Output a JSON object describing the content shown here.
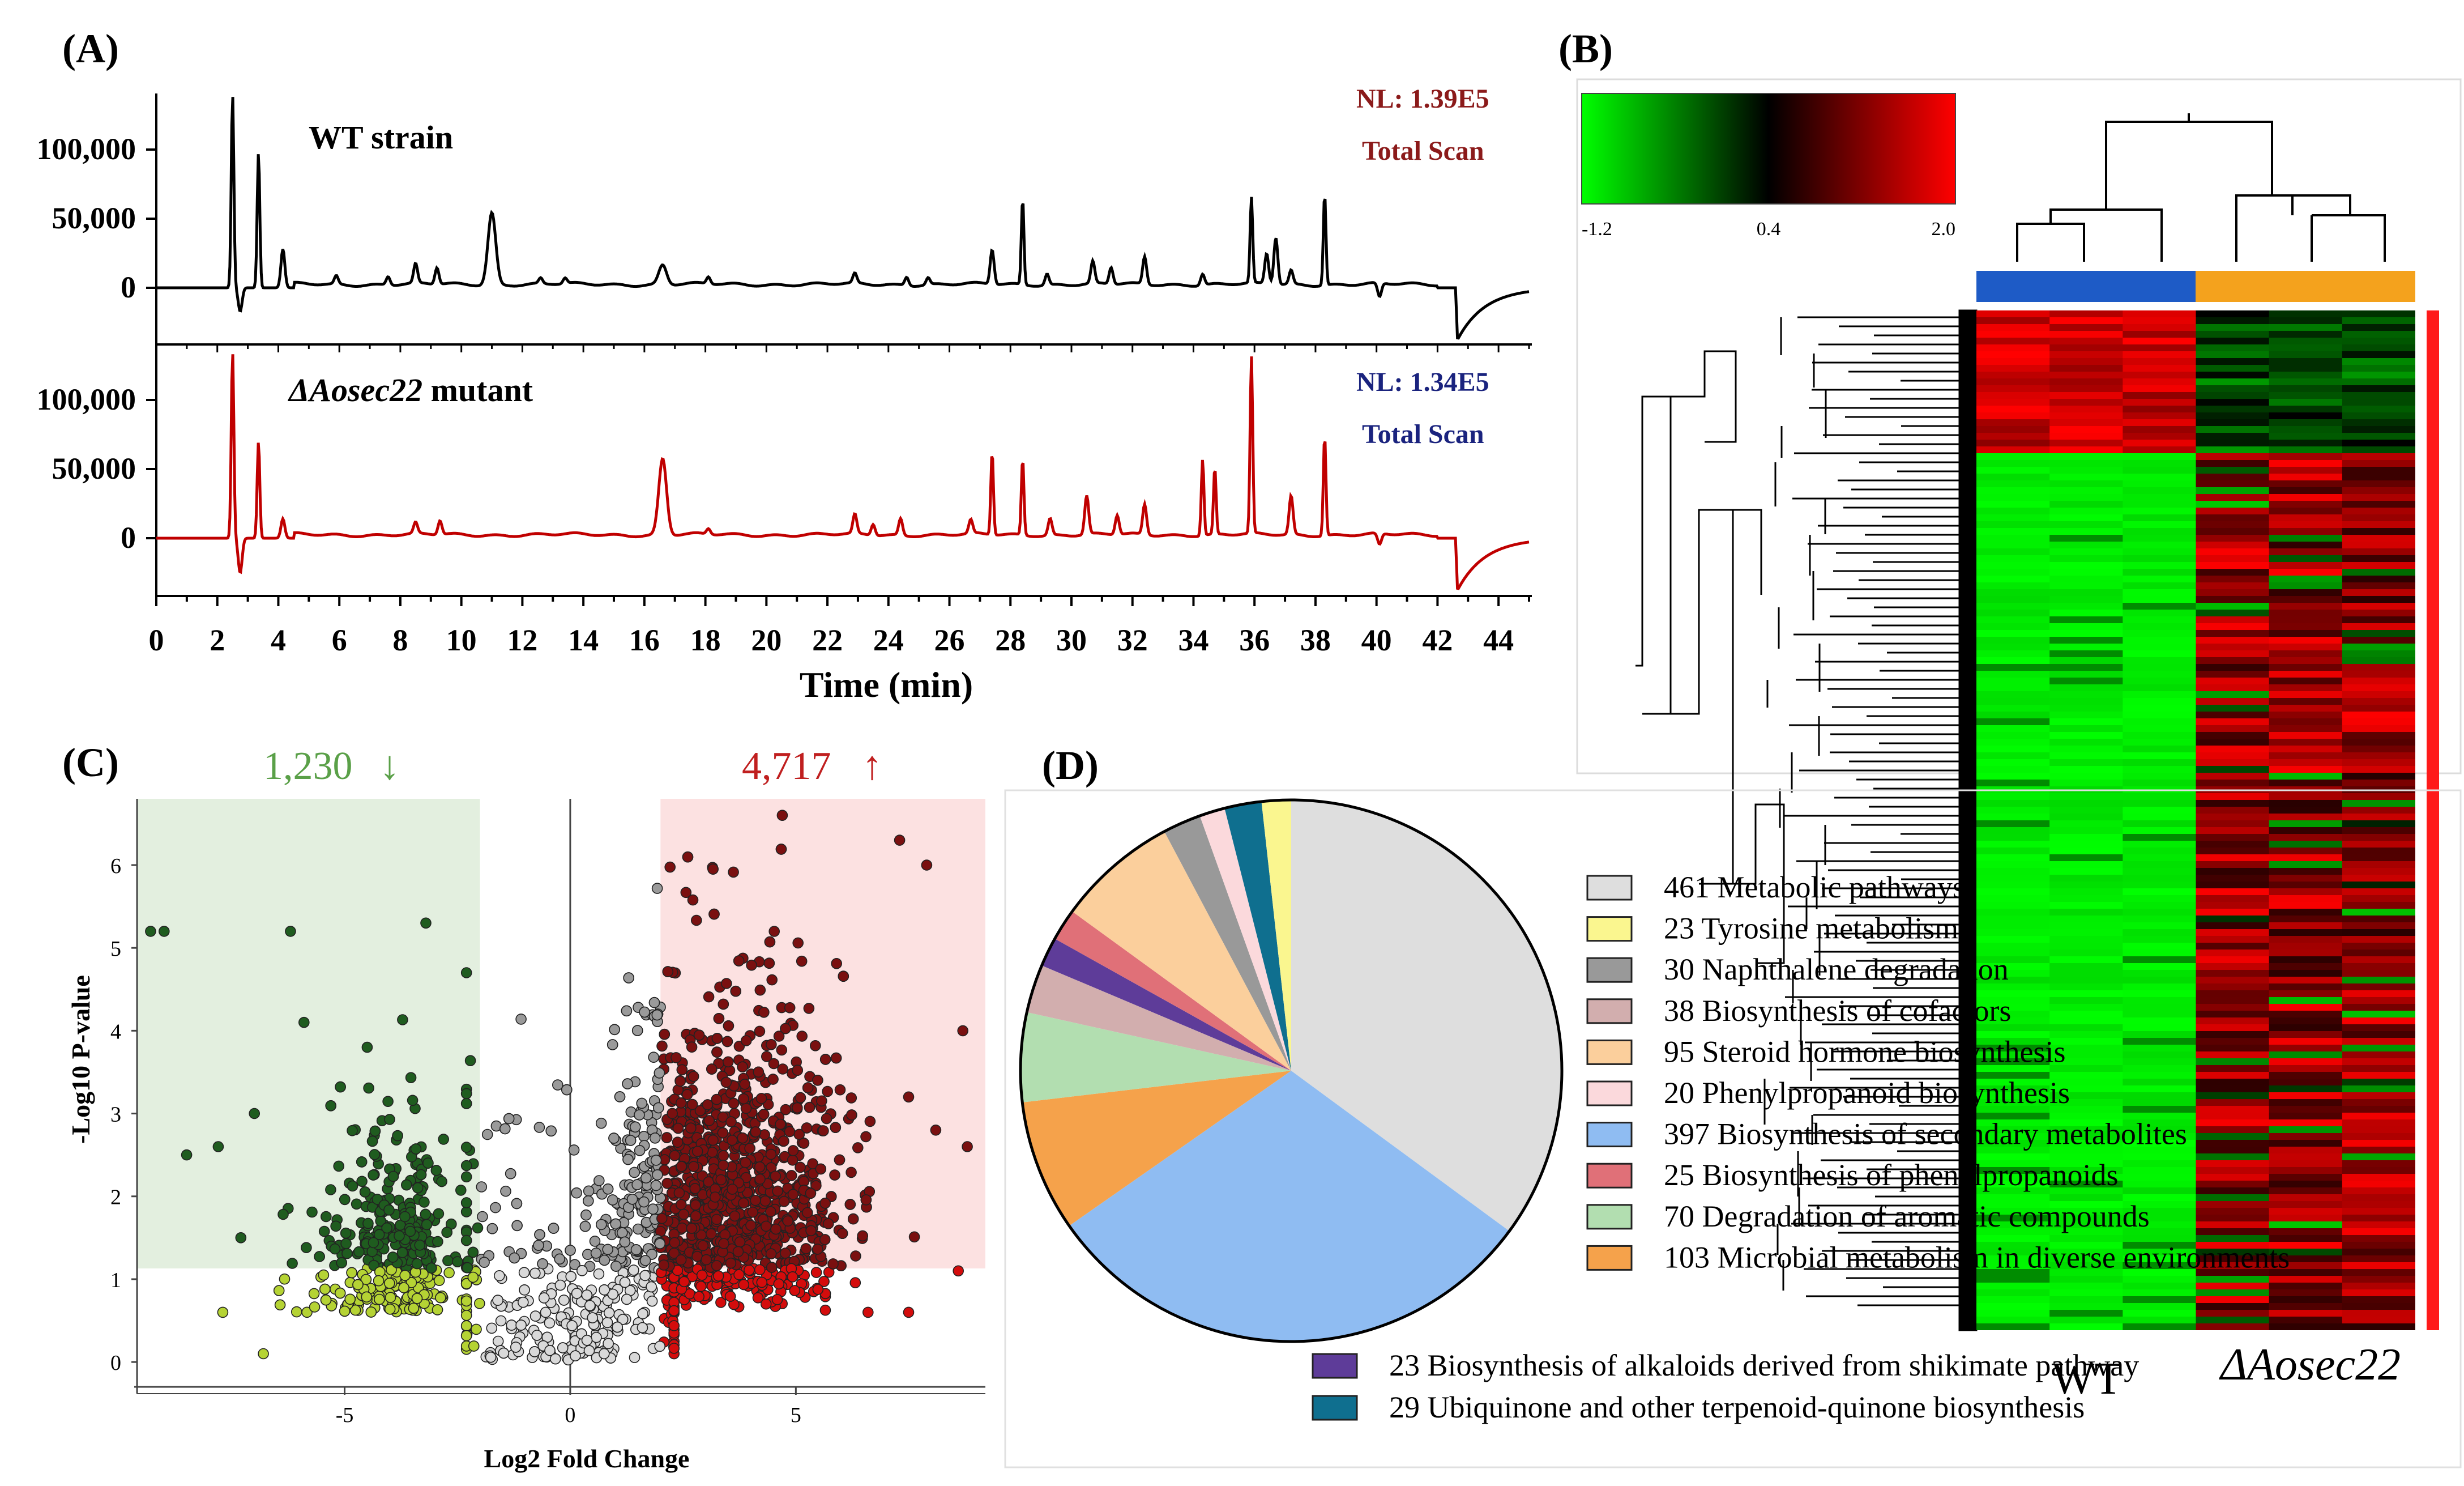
{
  "figure": {
    "panel_labels": [
      "(A)",
      "(B)",
      "(C)",
      "(D)"
    ]
  },
  "chart_data": [
    {
      "id": "A",
      "type": "line",
      "xlabel": "Time (min)",
      "xlim": [
        0,
        45
      ],
      "x_ticks": [
        0,
        2,
        4,
        6,
        8,
        10,
        12,
        14,
        16,
        18,
        20,
        22,
        24,
        26,
        28,
        30,
        32,
        34,
        36,
        38,
        40,
        42,
        44
      ],
      "y_tick_labels": [
        "100,000",
        "50,000",
        "0"
      ],
      "y_ticks": [
        100000,
        50000,
        0
      ],
      "series": [
        {
          "name": "WT strain",
          "nl_label": "NL: 1.39E5",
          "scan_label": "Total Scan",
          "color": "#000000",
          "label_color": "#8b1a1a",
          "peaks": [
            [
              2.5,
              140000
            ],
            [
              2.75,
              -17000
            ],
            [
              3.35,
              98000
            ],
            [
              4.15,
              28000
            ],
            [
              5.9,
              6000
            ],
            [
              7.6,
              6000
            ],
            [
              8.5,
              14000
            ],
            [
              9.2,
              12000
            ],
            [
              11.0,
              52000
            ],
            [
              12.6,
              4000
            ],
            [
              13.4,
              4000
            ],
            [
              16.6,
              14000
            ],
            [
              18.1,
              5000
            ],
            [
              22.9,
              7000
            ],
            [
              24.6,
              6000
            ],
            [
              25.3,
              5000
            ],
            [
              27.4,
              25000
            ],
            [
              28.4,
              62000
            ],
            [
              29.2,
              8000
            ],
            [
              30.7,
              16000
            ],
            [
              31.3,
              12000
            ],
            [
              32.4,
              20000
            ],
            [
              34.3,
              8000
            ],
            [
              35.9,
              62000
            ],
            [
              36.4,
              22000
            ],
            [
              36.7,
              34000
            ],
            [
              37.2,
              10000
            ],
            [
              38.3,
              66000
            ],
            [
              40.1,
              -10000
            ]
          ],
          "y_range": [
            -20000,
            140000
          ]
        },
        {
          "name": "ΔAosec22 mutant",
          "nl_label": "NL: 1.34E5",
          "scan_label": "Total Scan",
          "color": "#c00000",
          "label_color": "#1a237e",
          "peaks": [
            [
              2.5,
              135000
            ],
            [
              2.75,
              -25000
            ],
            [
              3.35,
              70000
            ],
            [
              4.15,
              14000
            ],
            [
              8.5,
              8000
            ],
            [
              9.3,
              10000
            ],
            [
              16.6,
              55000
            ],
            [
              18.1,
              4000
            ],
            [
              22.9,
              14000
            ],
            [
              23.5,
              8000
            ],
            [
              24.4,
              12000
            ],
            [
              26.7,
              10000
            ],
            [
              27.4,
              60000
            ],
            [
              28.4,
              55000
            ],
            [
              29.3,
              12000
            ],
            [
              30.5,
              28000
            ],
            [
              31.5,
              14000
            ],
            [
              32.4,
              22000
            ],
            [
              34.3,
              55000
            ],
            [
              34.7,
              48000
            ],
            [
              35.9,
              128000
            ],
            [
              37.2,
              28000
            ],
            [
              38.3,
              72000
            ],
            [
              40.1,
              -8000
            ]
          ],
          "y_range": [
            -20000,
            130000
          ]
        }
      ]
    },
    {
      "id": "B",
      "type": "heatmap",
      "colorbar_ticks": [
        "-1.2",
        "0.4",
        "2.0"
      ],
      "colorbar_range": [
        -1.2,
        2.0
      ],
      "colors": {
        "low": "#00ff00",
        "mid": "#000000",
        "high": "#ff0000"
      },
      "groups": [
        {
          "name": "WT",
          "color": "#1e5bc6"
        },
        {
          "name": "ΔAosec22",
          "color": "#f4a21d"
        }
      ],
      "columns": 6,
      "rows_top_cluster": "higher in WT",
      "rows_bottom_cluster": "higher in ΔAosec22"
    },
    {
      "id": "C",
      "type": "scatter",
      "xlabel": "Log2 Fold Change",
      "ylabel": "-Log10 P-value",
      "xlim": [
        -9.6,
        9.2
      ],
      "ylim": [
        -0.3,
        6.8
      ],
      "x_ticks": [
        -5,
        0,
        5
      ],
      "y_ticks": [
        0,
        1,
        2,
        3,
        4,
        5,
        6
      ],
      "fc_threshold": 2,
      "p_threshold": 1.13,
      "down_count": "1,230",
      "up_count": "4,717",
      "colors": {
        "down_sig": "#1f5c1f",
        "down_fc_only": "#b5d334",
        "up_sig": "#7a1010",
        "up_fc_only": "#d40c0c",
        "ns": "#9a9a9a",
        "ns_low": "#d9d9d9",
        "down_region": "#e3efdf",
        "up_region": "#fce1e1"
      },
      "outliers": [
        [
          -9.3,
          5.2
        ],
        [
          -9.0,
          5.2
        ],
        [
          -8.5,
          2.5
        ],
        [
          -7.8,
          2.6
        ],
        [
          -7.3,
          1.5
        ],
        [
          -7.0,
          3.0
        ],
        [
          -6.2,
          5.2
        ],
        [
          -5.9,
          4.1
        ],
        [
          -4.5,
          3.8
        ],
        [
          -3.2,
          5.3
        ],
        [
          -2.3,
          4.7
        ],
        [
          -7.7,
          0.6
        ],
        [
          -6.8,
          0.1
        ],
        [
          4.7,
          6.6
        ],
        [
          7.3,
          6.3
        ],
        [
          7.9,
          6.0
        ],
        [
          8.7,
          4.0
        ],
        [
          7.5,
          3.2
        ],
        [
          8.1,
          2.8
        ],
        [
          8.8,
          2.6
        ],
        [
          8.6,
          1.1
        ],
        [
          6.6,
          0.6
        ],
        [
          7.5,
          0.6
        ]
      ]
    },
    {
      "id": "D",
      "type": "pie",
      "slices": [
        {
          "value": 461,
          "label": "Metabolic pathways",
          "color": "#dedede"
        },
        {
          "value": 397,
          "label": "Biosynthesis of secondary metabolites",
          "color": "#8fbcf2"
        },
        {
          "value": 103,
          "label": "Microbial metabolism in diverse environments",
          "color": "#f5a24b"
        },
        {
          "value": 70,
          "label": "Degradation of aromatic compounds",
          "color": "#b2deb0"
        },
        {
          "value": 38,
          "label": "Biosynthesis of cofactors",
          "color": "#d2aeae"
        },
        {
          "value": 23,
          "label": "Biosynthesis of alkaloids derived from shikimate pathway",
          "color": "#5e3c99"
        },
        {
          "value": 25,
          "label": "Biosynthesis of phenylpropanoids",
          "color": "#e07078"
        },
        {
          "value": 95,
          "label": "Steroid hormone biosynthesis",
          "color": "#fbcf9c"
        },
        {
          "value": 30,
          "label": "Naphthalene degradation",
          "color": "#999999"
        },
        {
          "value": 20,
          "label": "Phenylpropanoid biosynthesis",
          "color": "#fbd9dc"
        },
        {
          "value": 29,
          "label": "Ubiquinone and other terpenoid-quinone biosynthesis",
          "color": "#0f6f8f"
        },
        {
          "value": 23,
          "label": "Tyrosine metabolism",
          "color": "#faf68f"
        }
      ],
      "legend_order": [
        0,
        11,
        8,
        4,
        7,
        9,
        1,
        6,
        3,
        2
      ],
      "legend_below": [
        5,
        10
      ]
    }
  ]
}
